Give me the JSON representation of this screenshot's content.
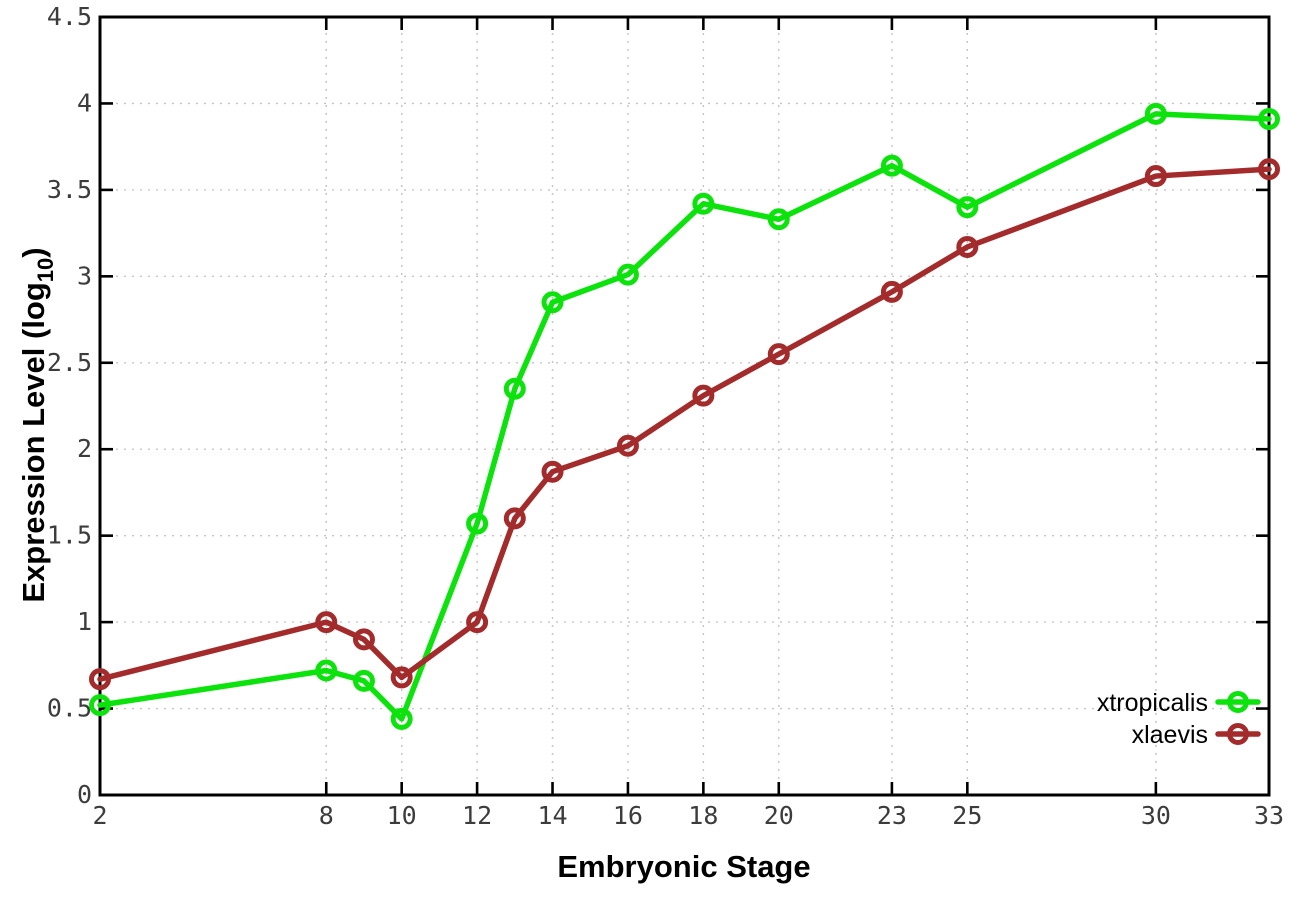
{
  "figure": {
    "background": "#ffffff",
    "border_color": "#000000",
    "grid_color": "#c4c4c4",
    "tick_label_color": "#3c3c3c",
    "axis_title_color": "#000000"
  },
  "chart_data": {
    "type": "line",
    "title": "",
    "xlabel": "Embryonic Stage",
    "ylabel": "Expression Level (log10)",
    "ylabel_parts": {
      "prefix": "Expression Level (log",
      "subscript": "10",
      "suffix": ")"
    },
    "xlim": [
      2,
      33
    ],
    "ylim": [
      0,
      4.5
    ],
    "grid": true,
    "legend_position": "inside bottom-right",
    "x": [
      2,
      8,
      9,
      10,
      12,
      13,
      14,
      16,
      18,
      20,
      23,
      25,
      30,
      33
    ],
    "xticks": [
      2,
      8,
      10,
      12,
      14,
      16,
      18,
      20,
      23,
      25,
      30,
      33
    ],
    "xtick_labels": [
      "2",
      "8",
      "10",
      "12",
      "14",
      "16",
      "18",
      "20",
      "23",
      "25",
      "30",
      "33"
    ],
    "yticks": [
      0,
      0.5,
      1,
      1.5,
      2,
      2.5,
      3,
      3.5,
      4,
      4.5
    ],
    "ytick_labels": [
      "0",
      "0.5",
      "1",
      "1.5",
      "2",
      "2.5",
      "3",
      "3.5",
      "4",
      "4.5"
    ],
    "series": [
      {
        "name": "xtropicalis",
        "color": "#0ce30c",
        "values": [
          0.52,
          0.72,
          0.66,
          0.44,
          1.57,
          2.35,
          2.85,
          3.01,
          3.42,
          3.33,
          3.64,
          3.4,
          3.94,
          3.91
        ]
      },
      {
        "name": "xlaevis",
        "color": "#a32b2b",
        "values": [
          0.67,
          1.0,
          0.9,
          0.68,
          1.0,
          1.6,
          1.87,
          2.02,
          2.31,
          2.55,
          2.91,
          3.17,
          3.58,
          3.62
        ]
      }
    ]
  }
}
